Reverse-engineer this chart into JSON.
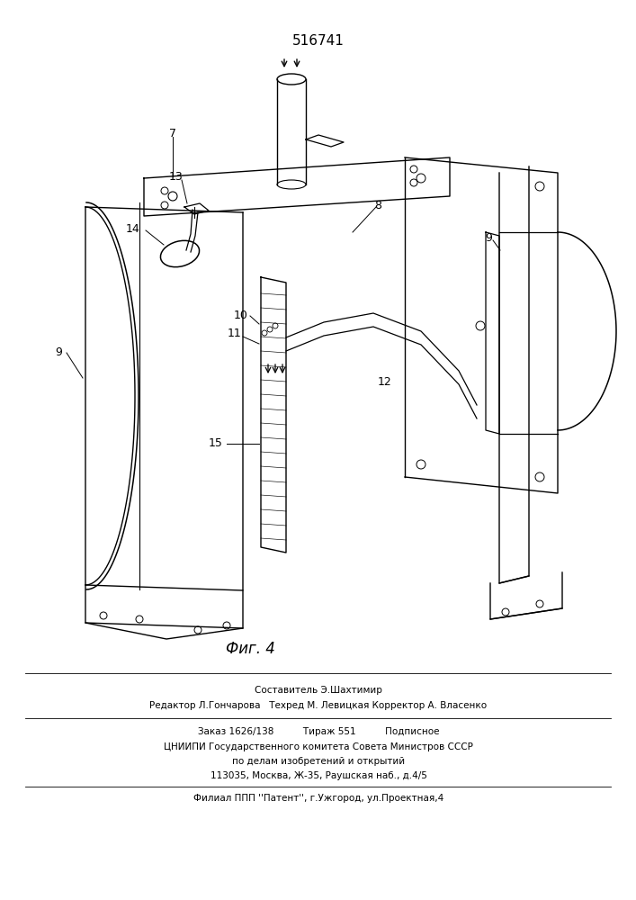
{
  "title_number": "516741",
  "fig_label": "Фиг. 4",
  "bg_color": "#ffffff",
  "line_color": "#000000",
  "footer_lines": [
    "Составитель Э.Шахтимир",
    "Редактор Л.Гончарова   Техред М. Левицкая Корректор А. Власенко",
    "Заказ 1626/138          Тираж 551          Подписное",
    "ЦНИИПИ Государственного комитета Совета Министров СССР",
    "по делам изобретений и открытий",
    "113035, Москва, Ж-35, Раушская наб., д.4/5",
    "Филиал ППП ''\\u041fатент'', г.Ужгород, ул.Проектная,4"
  ]
}
